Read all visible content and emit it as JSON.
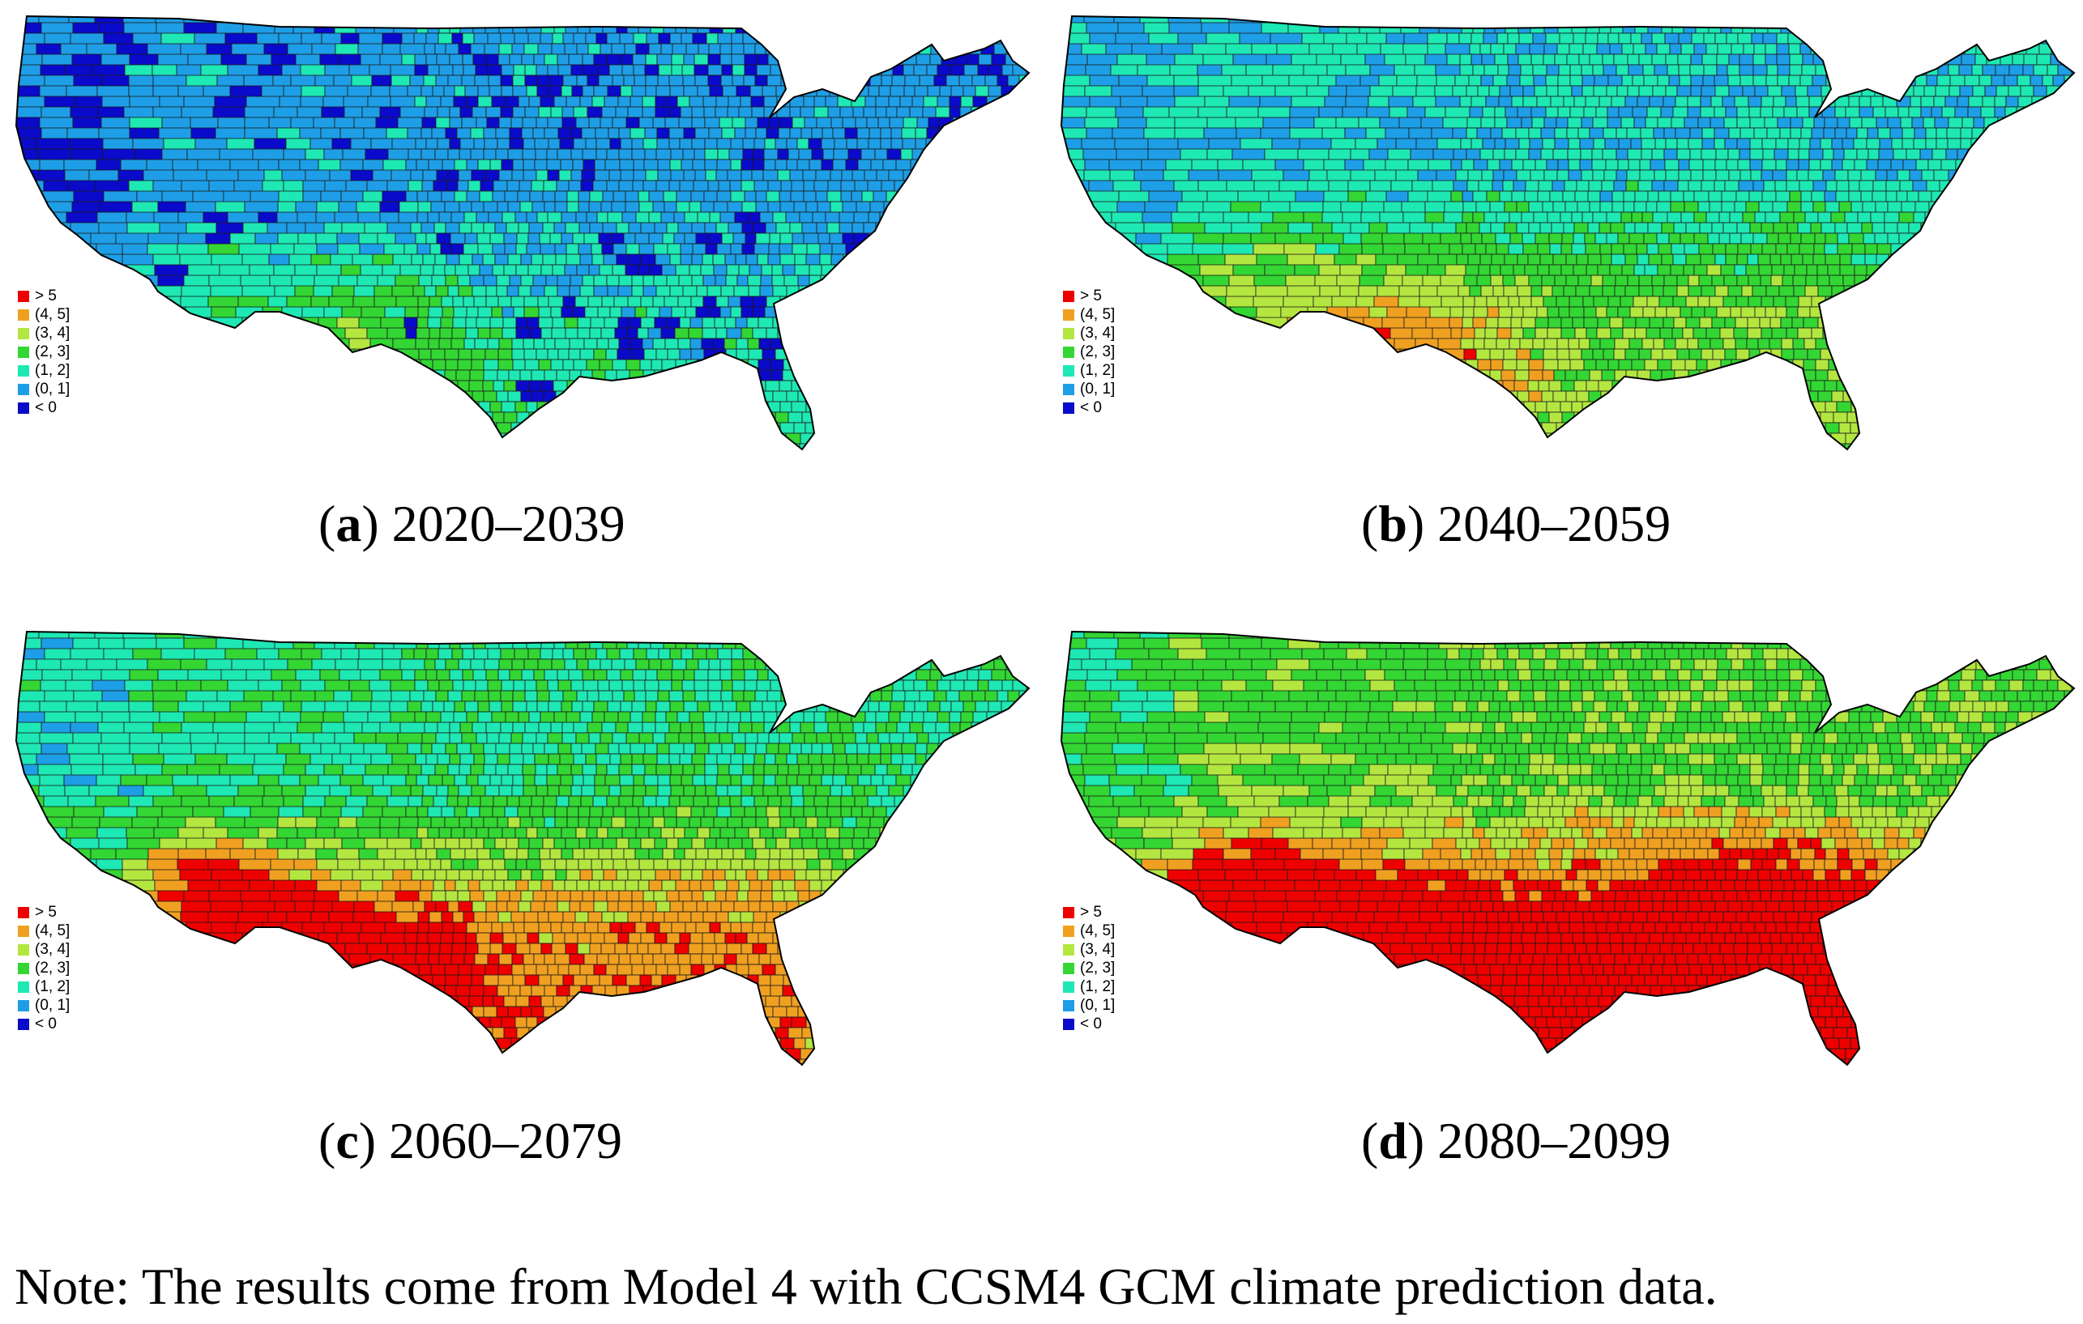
{
  "legend": {
    "classes": [
      {
        "label": "> 5",
        "color": "#ee0000"
      },
      {
        "label": "(4, 5]",
        "color": "#f0a020"
      },
      {
        "label": "(3, 4]",
        "color": "#b4e640"
      },
      {
        "label": "(2, 3]",
        "color": "#33d633"
      },
      {
        "label": "(1, 2]",
        "color": "#1ee8b4"
      },
      {
        "label": "(0, 1]",
        "color": "#1e9ee6"
      },
      {
        "label": "< 0",
        "color": "#0a0aca"
      }
    ]
  },
  "panels": [
    {
      "letter": "a",
      "period": "2020–2039",
      "intensity": 0
    },
    {
      "letter": "b",
      "period": "2040–2059",
      "intensity": 1
    },
    {
      "letter": "c",
      "period": "2060–2079",
      "intensity": 2
    },
    {
      "letter": "d",
      "period": "2080–2099",
      "intensity": 3
    }
  ],
  "note": "Note: The results come from Model 4 with CCSM4 GCM climate prediction data."
}
